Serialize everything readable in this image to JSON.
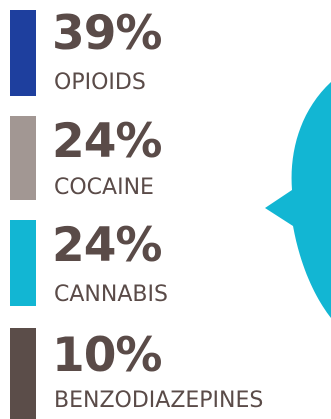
{
  "chart_data": {
    "type": "pie",
    "title": "",
    "categories": [
      "OPIOIDS",
      "COCAINE",
      "CANNABIS",
      "BENZODIAZEPINES"
    ],
    "values": [
      39,
      24,
      24,
      10
    ],
    "value_labels": [
      "39%",
      "24%",
      "24%",
      "10%"
    ],
    "colors": [
      "#1e3f9e",
      "#a29793",
      "#12b6d3",
      "#5b4d49"
    ],
    "legend_placement": "left"
  },
  "legend": [
    {
      "percent": "39%",
      "label": "OPIOIDS",
      "color": "#1e3f9e"
    },
    {
      "percent": "24%",
      "label": "COCAINE",
      "color": "#a29793"
    },
    {
      "percent": "24%",
      "label": "CANNABIS",
      "color": "#12b6d3"
    },
    {
      "percent": "10%",
      "label": "BENZODIAZEPINES",
      "color": "#5b4d49"
    }
  ]
}
